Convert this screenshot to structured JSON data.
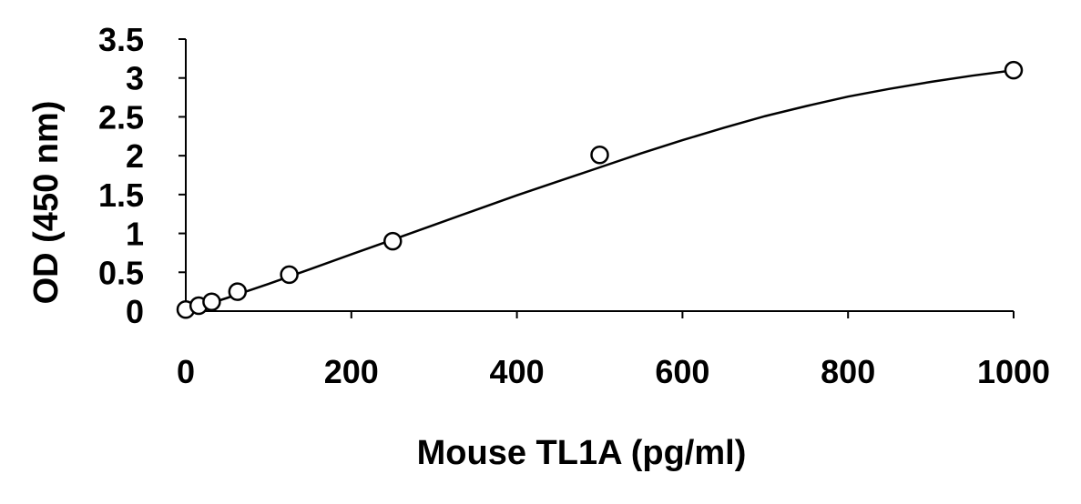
{
  "chart_data": {
    "type": "scatter",
    "xlabel": "Mouse TL1A  (pg/ml)",
    "ylabel": "OD (450 nm)",
    "xlim": [
      0,
      1000
    ],
    "ylim": [
      0,
      3.5
    ],
    "x_ticks": [
      "0",
      "200",
      "400",
      "600",
      "800",
      "1000"
    ],
    "y_ticks": [
      "0",
      "0.5",
      "1",
      "1.5",
      "2",
      "2.5",
      "3",
      "3.5"
    ],
    "grid": false,
    "legend": "none",
    "series": [
      {
        "marker": "open-circle",
        "x": [
          0,
          15.6,
          31.25,
          62.5,
          125,
          250,
          500,
          1000
        ],
        "y": [
          0.02,
          0.07,
          0.12,
          0.25,
          0.47,
          0.9,
          2.01,
          3.1
        ]
      }
    ],
    "fit_curve": {
      "style": "solid",
      "x": [
        0,
        50,
        100,
        150,
        200,
        250,
        300,
        350,
        400,
        450,
        500,
        550,
        600,
        650,
        700,
        750,
        800,
        850,
        900,
        950,
        1000
      ],
      "y": [
        0.0,
        0.17,
        0.35,
        0.54,
        0.73,
        0.92,
        1.11,
        1.3,
        1.49,
        1.67,
        1.85,
        2.03,
        2.2,
        2.36,
        2.51,
        2.64,
        2.76,
        2.86,
        2.95,
        3.03,
        3.1
      ]
    }
  }
}
